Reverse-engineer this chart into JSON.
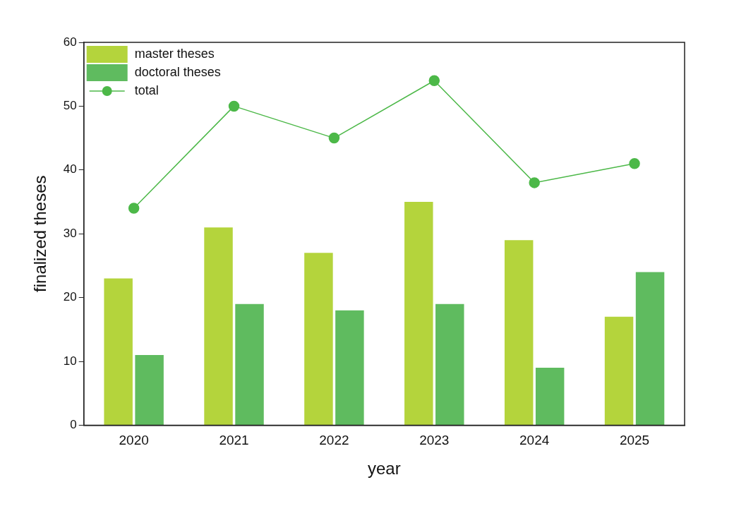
{
  "chart_data": {
    "type": "bar",
    "xlabel": "year",
    "ylabel": "finalized theses",
    "categories": [
      "2020",
      "2021",
      "2022",
      "2023",
      "2024",
      "2025"
    ],
    "series": [
      {
        "name": "master theses",
        "color": "#b4d43c",
        "values": [
          23,
          31,
          27,
          35,
          29,
          17
        ]
      },
      {
        "name": "doctoral theses",
        "color": "#5fbb5f",
        "values": [
          11,
          19,
          18,
          19,
          9,
          24
        ]
      },
      {
        "name": "total",
        "type": "line",
        "color": "#4cb848",
        "values": [
          34,
          50,
          45,
          54,
          38,
          41
        ]
      }
    ],
    "ylim": [
      0,
      60
    ],
    "yticks": [
      0,
      10,
      20,
      30,
      40,
      50,
      60
    ],
    "grid": false,
    "legend": "top left",
    "marker": "circle"
  }
}
